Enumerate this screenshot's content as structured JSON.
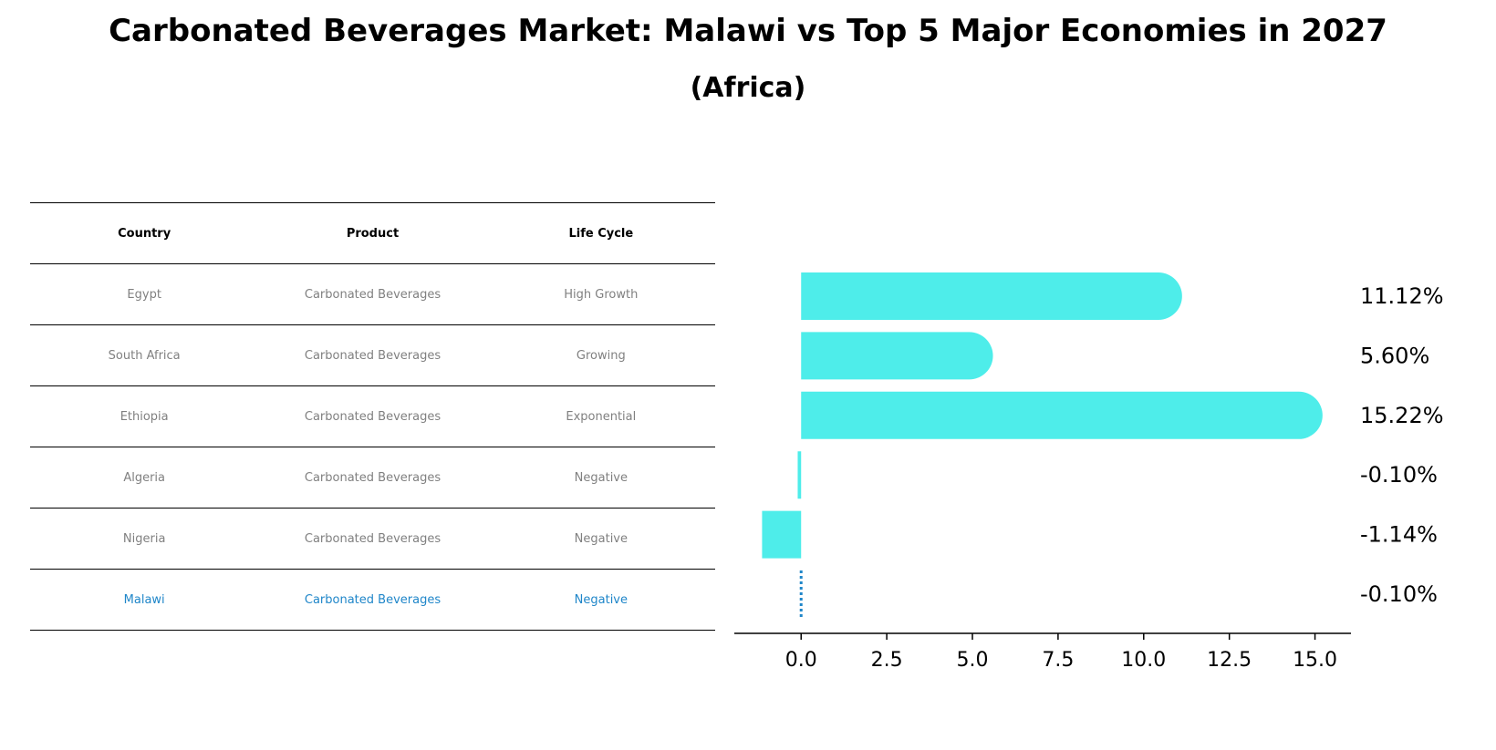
{
  "title": "Carbonated Beverages Market: Malawi vs Top 5 Major Economies in 2027",
  "subtitle": "(Africa)",
  "colors": {
    "bar": "#4eedea",
    "highlight": "#1f86c9",
    "muted_text": "#808080"
  },
  "table": {
    "headers": [
      "Country",
      "Product",
      "Life Cycle"
    ],
    "rows": [
      {
        "country": "Egypt",
        "product": "Carbonated Beverages",
        "life_cycle": "High Growth",
        "highlight": false
      },
      {
        "country": "South Africa",
        "product": "Carbonated Beverages",
        "life_cycle": "Growing",
        "highlight": false
      },
      {
        "country": "Ethiopia",
        "product": "Carbonated Beverages",
        "life_cycle": "Exponential",
        "highlight": false
      },
      {
        "country": "Algeria",
        "product": "Carbonated Beverages",
        "life_cycle": "Negative",
        "highlight": false
      },
      {
        "country": "Nigeria",
        "product": "Carbonated Beverages",
        "life_cycle": "Negative",
        "highlight": false
      },
      {
        "country": "Malawi",
        "product": "Carbonated Beverages",
        "life_cycle": "Negative",
        "highlight": true
      }
    ]
  },
  "chart_data": {
    "type": "bar",
    "orientation": "horizontal",
    "categories": [
      "Egypt",
      "South Africa",
      "Ethiopia",
      "Algeria",
      "Nigeria",
      "Malawi"
    ],
    "values": [
      11.12,
      5.6,
      15.22,
      -0.1,
      -1.14,
      -0.1
    ],
    "value_labels": [
      "11.12%",
      "5.60%",
      "15.22%",
      "-0.10%",
      "-1.14%",
      "-0.10%"
    ],
    "highlight_index": 5,
    "xlim": [
      -1.95,
      16.05
    ],
    "xticks": [
      0.0,
      2.5,
      5.0,
      7.5,
      10.0,
      12.5,
      15.0
    ],
    "xtick_labels": [
      "0.0",
      "2.5",
      "5.0",
      "7.5",
      "10.0",
      "12.5",
      "15.0"
    ],
    "grid": false
  }
}
